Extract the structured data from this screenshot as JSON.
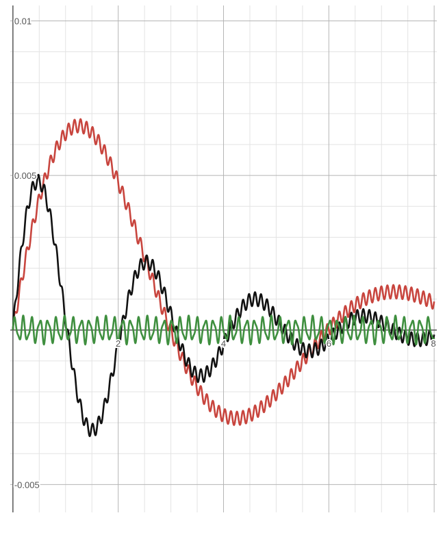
{
  "chart_data": {
    "type": "line",
    "title": "",
    "xlabel": "",
    "ylabel": "",
    "xlim": [
      -0.05,
      8.05
    ],
    "ylim": [
      -0.0059,
      0.0105
    ],
    "x_major_ticks": [
      0,
      2,
      4,
      6,
      8
    ],
    "x_tick_labels": [
      "2",
      "4",
      "6",
      "8"
    ],
    "x_minor_step": 0.5,
    "y_major_ticks": [
      -0.005,
      0,
      0.005,
      0.01
    ],
    "y_tick_labels": [
      "0.01",
      "0.005",
      "-0.005"
    ],
    "y_minor_step": 0.001,
    "grid": true,
    "legend": false,
    "series": [
      {
        "name": "red-curve",
        "color": "#c8453e",
        "model": "damped-sine-with-ripple",
        "amplitude": 0.0097,
        "decay": 0.28,
        "angular_frequency": 1.05,
        "ripple_amplitude": 0.00022,
        "ripple_frequency": 55
      },
      {
        "name": "black-curve",
        "color": "#111111",
        "model": "damped-sine-with-ripple",
        "amplitude": 0.0058,
        "decay": 0.38,
        "angular_frequency": 3.05,
        "ripple_amplitude": 0.00022,
        "ripple_frequency": 55
      },
      {
        "name": "green-curve",
        "color": "#3f8f3f",
        "model": "oscillation",
        "amplitude": 0.00035,
        "decay": 0.0,
        "angular_frequency": 40,
        "ripple_amplitude": 0.00012,
        "ripple_frequency": 72
      }
    ],
    "sample_count": 1600
  }
}
